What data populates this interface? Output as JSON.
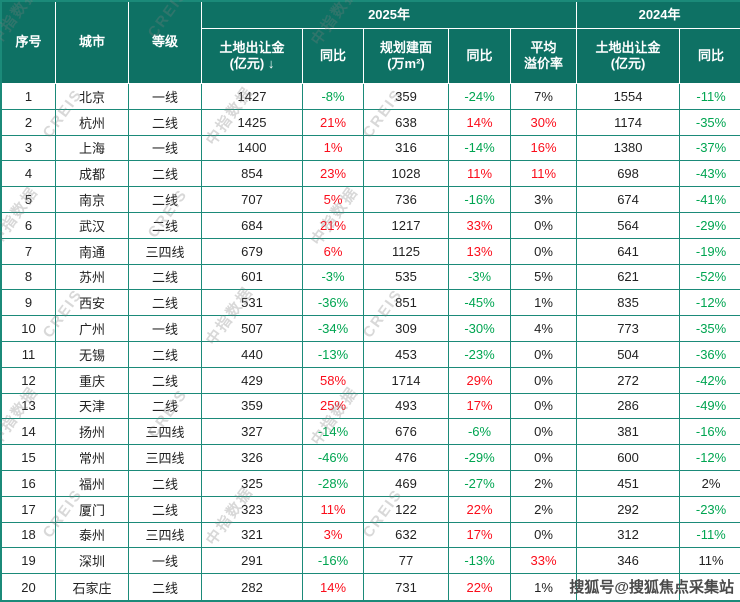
{
  "watermark": {
    "texts": [
      "中指数据",
      "CREIS"
    ],
    "bottom": "搜狐号@搜狐焦点采集站"
  },
  "colors": {
    "header_bg": "#0E7164",
    "grid_border": "#1B8A79",
    "positive_red": "#FB0D1B",
    "negative_green": "#00A551"
  },
  "header": {
    "seq": "序号",
    "city": "城市",
    "tier": "等级",
    "group_2025": "2025年",
    "group_2024": "2024年",
    "landfee_line1": "土地出让金",
    "landfee_line2": "(亿元)",
    "sort_arrow": "↓",
    "yoy": "同比",
    "area_line1": "规划建面",
    "area_line2": "(万m²)",
    "premium_line1": "平均",
    "premium_line2": "溢价率"
  },
  "chart_data": {
    "type": "table",
    "title": "城市土地出让金排行 2025年 vs 2024年",
    "column_groups": [
      {
        "label": "2025年",
        "span": 5
      },
      {
        "label": "2024年",
        "span": 2
      }
    ],
    "columns": [
      "序号",
      "城市",
      "等级",
      "土地出让金(亿元)",
      "同比",
      "规划建面(万m²)",
      "同比",
      "平均溢价率",
      "土地出让金(亿元)",
      "同比"
    ],
    "sort": {
      "column": "2025年 土地出让金(亿元)",
      "direction": "desc",
      "arrow": "↓"
    },
    "color_legend": {
      "k": "black",
      "g": "green",
      "r": "red"
    },
    "rows": [
      {
        "seq": "1",
        "city": "北京",
        "tier": "一线",
        "values": [
          "1427",
          "-8%",
          "359",
          "-24%",
          "7%",
          "1554",
          "-11%"
        ],
        "colors": [
          "k",
          "g",
          "k",
          "g",
          "k",
          "k",
          "g"
        ]
      },
      {
        "seq": "2",
        "city": "杭州",
        "tier": "二线",
        "values": [
          "1425",
          "21%",
          "638",
          "14%",
          "30%",
          "1174",
          "-35%"
        ],
        "colors": [
          "k",
          "r",
          "k",
          "r",
          "r",
          "k",
          "g"
        ]
      },
      {
        "seq": "3",
        "city": "上海",
        "tier": "一线",
        "values": [
          "1400",
          "1%",
          "316",
          "-14%",
          "16%",
          "1380",
          "-37%"
        ],
        "colors": [
          "k",
          "r",
          "k",
          "g",
          "r",
          "k",
          "g"
        ]
      },
      {
        "seq": "4",
        "city": "成都",
        "tier": "二线",
        "values": [
          "854",
          "23%",
          "1028",
          "11%",
          "11%",
          "698",
          "-43%"
        ],
        "colors": [
          "k",
          "r",
          "k",
          "r",
          "r",
          "k",
          "g"
        ]
      },
      {
        "seq": "5",
        "city": "南京",
        "tier": "二线",
        "values": [
          "707",
          "5%",
          "736",
          "-16%",
          "3%",
          "674",
          "-41%"
        ],
        "colors": [
          "k",
          "r",
          "k",
          "g",
          "k",
          "k",
          "g"
        ]
      },
      {
        "seq": "6",
        "city": "武汉",
        "tier": "二线",
        "values": [
          "684",
          "21%",
          "1217",
          "33%",
          "0%",
          "564",
          "-29%"
        ],
        "colors": [
          "k",
          "r",
          "k",
          "r",
          "k",
          "k",
          "g"
        ]
      },
      {
        "seq": "7",
        "city": "南通",
        "tier": "三四线",
        "values": [
          "679",
          "6%",
          "1125",
          "13%",
          "0%",
          "641",
          "-19%"
        ],
        "colors": [
          "k",
          "r",
          "k",
          "r",
          "k",
          "k",
          "g"
        ]
      },
      {
        "seq": "8",
        "city": "苏州",
        "tier": "二线",
        "values": [
          "601",
          "-3%",
          "535",
          "-3%",
          "5%",
          "621",
          "-52%"
        ],
        "colors": [
          "k",
          "g",
          "k",
          "g",
          "k",
          "k",
          "g"
        ]
      },
      {
        "seq": "9",
        "city": "西安",
        "tier": "二线",
        "values": [
          "531",
          "-36%",
          "851",
          "-45%",
          "1%",
          "835",
          "-12%"
        ],
        "colors": [
          "k",
          "g",
          "k",
          "g",
          "k",
          "k",
          "g"
        ]
      },
      {
        "seq": "10",
        "city": "广州",
        "tier": "一线",
        "values": [
          "507",
          "-34%",
          "309",
          "-30%",
          "4%",
          "773",
          "-35%"
        ],
        "colors": [
          "k",
          "g",
          "k",
          "g",
          "k",
          "k",
          "g"
        ]
      },
      {
        "seq": "11",
        "city": "无锡",
        "tier": "二线",
        "values": [
          "440",
          "-13%",
          "453",
          "-23%",
          "0%",
          "504",
          "-36%"
        ],
        "colors": [
          "k",
          "g",
          "k",
          "g",
          "k",
          "k",
          "g"
        ]
      },
      {
        "seq": "12",
        "city": "重庆",
        "tier": "二线",
        "values": [
          "429",
          "58%",
          "1714",
          "29%",
          "0%",
          "272",
          "-42%"
        ],
        "colors": [
          "k",
          "r",
          "k",
          "r",
          "k",
          "k",
          "g"
        ]
      },
      {
        "seq": "13",
        "city": "天津",
        "tier": "二线",
        "values": [
          "359",
          "25%",
          "493",
          "17%",
          "0%",
          "286",
          "-49%"
        ],
        "colors": [
          "k",
          "r",
          "k",
          "r",
          "k",
          "k",
          "g"
        ]
      },
      {
        "seq": "14",
        "city": "扬州",
        "tier": "三四线",
        "values": [
          "327",
          "-14%",
          "676",
          "-6%",
          "0%",
          "381",
          "-16%"
        ],
        "colors": [
          "k",
          "g",
          "k",
          "g",
          "k",
          "k",
          "g"
        ]
      },
      {
        "seq": "15",
        "city": "常州",
        "tier": "三四线",
        "values": [
          "326",
          "-46%",
          "476",
          "-29%",
          "0%",
          "600",
          "-12%"
        ],
        "colors": [
          "k",
          "g",
          "k",
          "g",
          "k",
          "k",
          "g"
        ]
      },
      {
        "seq": "16",
        "city": "福州",
        "tier": "二线",
        "values": [
          "325",
          "-28%",
          "469",
          "-27%",
          "2%",
          "451",
          "2%"
        ],
        "colors": [
          "k",
          "g",
          "k",
          "g",
          "k",
          "k",
          "k"
        ]
      },
      {
        "seq": "17",
        "city": "厦门",
        "tier": "二线",
        "values": [
          "323",
          "11%",
          "122",
          "22%",
          "2%",
          "292",
          "-23%"
        ],
        "colors": [
          "k",
          "r",
          "k",
          "r",
          "k",
          "k",
          "g"
        ]
      },
      {
        "seq": "18",
        "city": "泰州",
        "tier": "三四线",
        "values": [
          "321",
          "3%",
          "632",
          "17%",
          "0%",
          "312",
          "-11%"
        ],
        "colors": [
          "k",
          "r",
          "k",
          "r",
          "k",
          "k",
          "g"
        ]
      },
      {
        "seq": "19",
        "city": "深圳",
        "tier": "一线",
        "values": [
          "291",
          "-16%",
          "77",
          "-13%",
          "33%",
          "346",
          "11%"
        ],
        "colors": [
          "k",
          "g",
          "k",
          "g",
          "r",
          "k",
          "k"
        ]
      },
      {
        "seq": "20",
        "city": "石家庄",
        "tier": "二线",
        "values": [
          "282",
          "14%",
          "731",
          "22%",
          "1%",
          "",
          ""
        ],
        "colors": [
          "k",
          "r",
          "k",
          "r",
          "k",
          "k",
          "k"
        ]
      }
    ]
  }
}
